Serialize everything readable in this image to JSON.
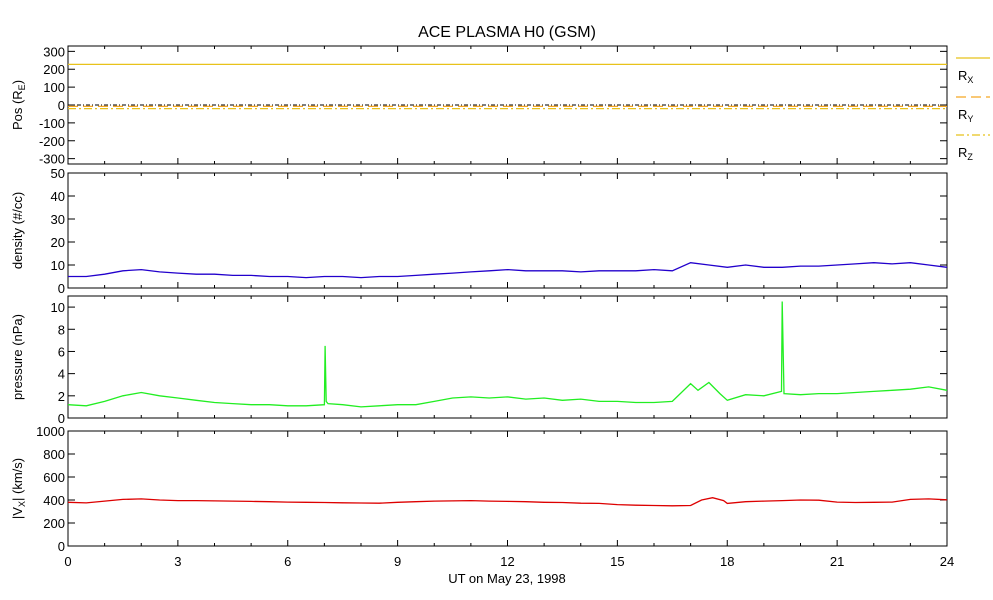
{
  "chart_data": {
    "type": "line",
    "title": "ACE PLASMA H0 (GSM)",
    "xlabel": "UT on May 23, 1998",
    "xlim": [
      0,
      24
    ],
    "xticks": [
      0,
      3,
      6,
      9,
      12,
      15,
      18,
      21,
      24
    ],
    "grid": false,
    "panels": [
      {
        "id": "pos",
        "ylabel_main": "Pos (R",
        "ylabel_sub": "E",
        "ylabel_end": ")",
        "ylim": [
          -330,
          330
        ],
        "yticks": [
          300,
          200,
          100,
          0,
          -100,
          -200,
          -300
        ],
        "legend_placement": "right",
        "series": [
          {
            "name_main": "R",
            "name_sub": "X",
            "color": "#e8c21a",
            "style": "solid",
            "x": [
              0,
              24
            ],
            "y": [
              227,
              227
            ]
          },
          {
            "name_main": "R",
            "name_sub": "Y",
            "color": "#f5a623",
            "style": "dash",
            "x": [
              0,
              24
            ],
            "y": [
              -8,
              -8
            ]
          },
          {
            "name_main": "R",
            "name_sub": "Z",
            "color": "#e8c21a",
            "style": "dashdot",
            "x": [
              0,
              24
            ],
            "y": [
              -20,
              -20
            ]
          }
        ]
      },
      {
        "id": "density",
        "ylabel": "density (#/cc)",
        "ylim": [
          0,
          50
        ],
        "yticks": [
          50,
          40,
          30,
          20,
          10,
          0
        ],
        "series": [
          {
            "color": "#2200cc",
            "x": [
              0,
              0.5,
              1,
              1.5,
              2,
              2.5,
              3,
              3.5,
              4,
              4.5,
              5,
              5.5,
              6,
              6.5,
              7,
              7.5,
              8,
              8.5,
              9,
              9.5,
              10,
              10.5,
              11,
              11.5,
              12,
              12.5,
              13,
              13.5,
              14,
              14.5,
              15,
              15.5,
              16,
              16.5,
              17,
              17.5,
              18,
              18.5,
              19,
              19.5,
              20,
              20.5,
              21,
              21.5,
              22,
              22.5,
              23,
              23.5,
              24
            ],
            "y": [
              5,
              5,
              6,
              7.5,
              8,
              7,
              6.5,
              6,
              6,
              5.5,
              5.5,
              5,
              5,
              4.5,
              5,
              5,
              4.5,
              5,
              5,
              5.5,
              6,
              6.5,
              7,
              7.5,
              8,
              7.5,
              7.5,
              7.5,
              7,
              7.5,
              7.5,
              7.5,
              8,
              7.5,
              11,
              10,
              9,
              10,
              9,
              9,
              9.5,
              9.5,
              10,
              10.5,
              11,
              10.5,
              11,
              10,
              9
            ]
          }
        ]
      },
      {
        "id": "pressure",
        "ylabel": "pressure (nPa)",
        "ylim": [
          0,
          11
        ],
        "yticks": [
          10,
          8,
          6,
          4,
          2,
          0
        ],
        "series": [
          {
            "color": "#22ee22",
            "x": [
              0,
              0.5,
              1,
              1.5,
              2,
              2.5,
              3,
              3.5,
              4,
              4.5,
              5,
              5.5,
              6,
              6.5,
              7,
              7.02,
              7.05,
              7.1,
              7.5,
              8,
              8.5,
              9,
              9.5,
              10,
              10.5,
              11,
              11.5,
              12,
              12.5,
              13,
              13.5,
              14,
              14.5,
              15,
              15.5,
              16,
              16.5,
              17,
              17.2,
              17.5,
              17.8,
              18,
              18.5,
              19,
              19.48,
              19.5,
              19.55,
              20,
              20.5,
              21,
              21.5,
              22,
              22.5,
              23,
              23.5,
              24
            ],
            "y": [
              1.2,
              1.1,
              1.5,
              2,
              2.3,
              2,
              1.8,
              1.6,
              1.4,
              1.3,
              1.2,
              1.2,
              1.1,
              1.1,
              1.2,
              6.5,
              1.5,
              1.3,
              1.2,
              1,
              1.1,
              1.2,
              1.2,
              1.5,
              1.8,
              1.9,
              1.8,
              1.9,
              1.7,
              1.8,
              1.6,
              1.7,
              1.5,
              1.5,
              1.4,
              1.4,
              1.5,
              3.1,
              2.5,
              3.2,
              2.2,
              1.6,
              2.1,
              2,
              2.4,
              10.5,
              2.2,
              2.1,
              2.2,
              2.2,
              2.3,
              2.4,
              2.5,
              2.6,
              2.8,
              2.5
            ]
          }
        ]
      },
      {
        "id": "velocity",
        "ylabel_main": "|V",
        "ylabel_sub": "X",
        "ylabel_end": "| (km/s)",
        "ylim": [
          0,
          1000
        ],
        "yticks": [
          1000,
          800,
          600,
          400,
          200,
          0
        ],
        "series": [
          {
            "color": "#dd0000",
            "x": [
              0,
              0.5,
              1,
              1.5,
              2,
              2.5,
              3,
              3.5,
              4,
              4.5,
              5,
              5.5,
              6,
              6.5,
              7,
              7.5,
              8,
              8.5,
              9,
              9.5,
              10,
              10.5,
              11,
              11.5,
              12,
              12.5,
              13,
              13.5,
              14,
              14.5,
              15,
              15.5,
              16,
              16.5,
              17,
              17.3,
              17.6,
              17.9,
              18,
              18.5,
              19,
              19.5,
              20,
              20.5,
              21,
              21.5,
              22,
              22.5,
              23,
              23.5,
              24
            ],
            "y": [
              380,
              375,
              390,
              405,
              410,
              400,
              395,
              395,
              392,
              390,
              388,
              385,
              382,
              380,
              378,
              376,
              374,
              372,
              380,
              385,
              390,
              392,
              395,
              390,
              388,
              385,
              380,
              378,
              372,
              370,
              360,
              355,
              352,
              350,
              352,
              400,
              420,
              395,
              370,
              385,
              390,
              395,
              400,
              398,
              382,
              378,
              380,
              382,
              405,
              410,
              402
            ]
          }
        ]
      }
    ]
  }
}
